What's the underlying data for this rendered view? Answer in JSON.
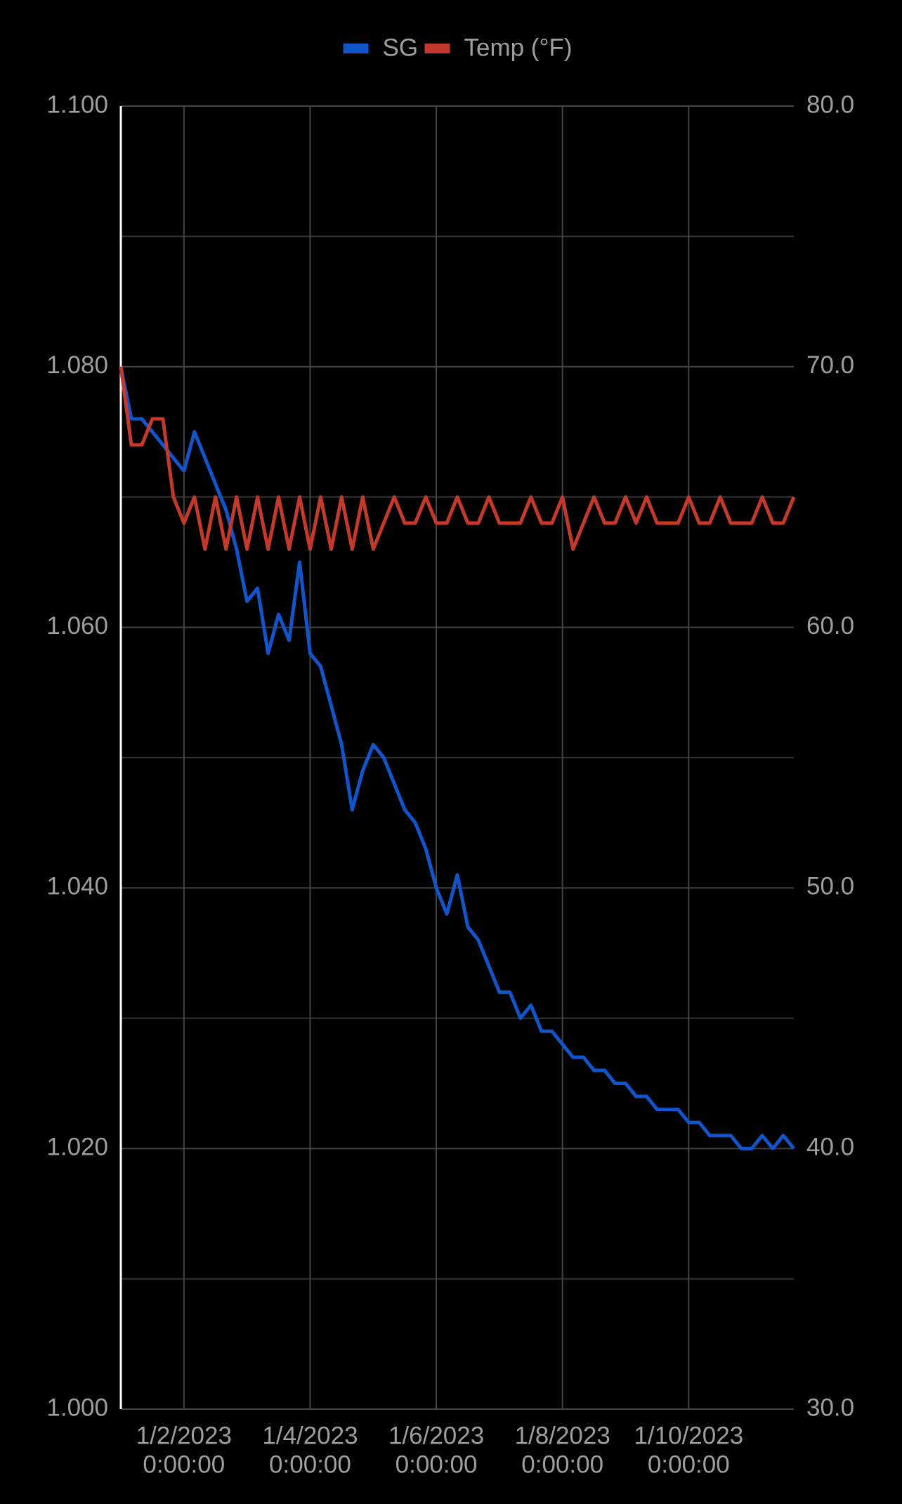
{
  "chart_data": {
    "type": "line",
    "x": [
      "2023-01-01T00:00:00",
      "2023-01-01T04:00:00",
      "2023-01-01T08:00:00",
      "2023-01-01T12:00:00",
      "2023-01-01T16:00:00",
      "2023-01-01T20:00:00",
      "2023-01-02T00:00:00",
      "2023-01-02T04:00:00",
      "2023-01-02T08:00:00",
      "2023-01-02T12:00:00",
      "2023-01-02T16:00:00",
      "2023-01-02T20:00:00",
      "2023-01-03T00:00:00",
      "2023-01-03T04:00:00",
      "2023-01-03T08:00:00",
      "2023-01-03T12:00:00",
      "2023-01-03T16:00:00",
      "2023-01-03T20:00:00",
      "2023-01-04T00:00:00",
      "2023-01-04T04:00:00",
      "2023-01-04T08:00:00",
      "2023-01-04T12:00:00",
      "2023-01-04T16:00:00",
      "2023-01-04T20:00:00",
      "2023-01-05T00:00:00",
      "2023-01-05T04:00:00",
      "2023-01-05T08:00:00",
      "2023-01-05T12:00:00",
      "2023-01-05T16:00:00",
      "2023-01-05T20:00:00",
      "2023-01-06T00:00:00",
      "2023-01-06T04:00:00",
      "2023-01-06T08:00:00",
      "2023-01-06T12:00:00",
      "2023-01-06T16:00:00",
      "2023-01-06T20:00:00",
      "2023-01-07T00:00:00",
      "2023-01-07T04:00:00",
      "2023-01-07T08:00:00",
      "2023-01-07T12:00:00",
      "2023-01-07T16:00:00",
      "2023-01-07T20:00:00",
      "2023-01-08T00:00:00",
      "2023-01-08T04:00:00",
      "2023-01-08T08:00:00",
      "2023-01-08T12:00:00",
      "2023-01-08T16:00:00",
      "2023-01-08T20:00:00",
      "2023-01-09T00:00:00",
      "2023-01-09T04:00:00",
      "2023-01-09T08:00:00",
      "2023-01-09T12:00:00",
      "2023-01-09T16:00:00",
      "2023-01-09T20:00:00",
      "2023-01-10T00:00:00",
      "2023-01-10T04:00:00",
      "2023-01-10T08:00:00",
      "2023-01-10T12:00:00",
      "2023-01-10T16:00:00",
      "2023-01-10T20:00:00",
      "2023-01-11T00:00:00",
      "2023-01-11T04:00:00",
      "2023-01-11T08:00:00",
      "2023-01-11T12:00:00",
      "2023-01-11T16:00:00"
    ],
    "series": [
      {
        "name": "SG",
        "color": "#1155cc",
        "values": [
          1.08,
          1.076,
          1.076,
          1.075,
          1.074,
          1.073,
          1.072,
          1.075,
          1.073,
          1.071,
          1.069,
          1.066,
          1.062,
          1.063,
          1.058,
          1.061,
          1.059,
          1.065,
          1.058,
          1.057,
          1.054,
          1.051,
          1.046,
          1.049,
          1.051,
          1.05,
          1.048,
          1.046,
          1.045,
          1.043,
          1.04,
          1.038,
          1.041,
          1.037,
          1.036,
          1.034,
          1.032,
          1.032,
          1.03,
          1.031,
          1.029,
          1.029,
          1.028,
          1.027,
          1.027,
          1.026,
          1.026,
          1.025,
          1.025,
          1.024,
          1.024,
          1.023,
          1.023,
          1.023,
          1.022,
          1.022,
          1.021,
          1.021,
          1.021,
          1.02,
          1.02,
          1.021,
          1.02,
          1.021,
          1.02
        ]
      },
      {
        "name": "Temp (°F)",
        "color": "#c5392b",
        "axis": "y2",
        "values": [
          70,
          67,
          67,
          68,
          68,
          65,
          64,
          65,
          63,
          65,
          63,
          65,
          63,
          65,
          63,
          65,
          63,
          65,
          63,
          65,
          63,
          65,
          63,
          65,
          63,
          64,
          65,
          64,
          64,
          65,
          64,
          64,
          65,
          64,
          64,
          65,
          64,
          64,
          64,
          65,
          64,
          64,
          65,
          63,
          64,
          65,
          64,
          64,
          65,
          64,
          65,
          64,
          64,
          64,
          65,
          64,
          64,
          65,
          64,
          64,
          64,
          65,
          64,
          64,
          65
        ]
      }
    ],
    "xlim": [
      "2023-01-01T00:00:00",
      "2023-01-11T16:00:00"
    ],
    "xticks": [
      {
        "value": "2023-01-02T00:00:00",
        "label": [
          "1/2/2023",
          "0:00:00"
        ]
      },
      {
        "value": "2023-01-04T00:00:00",
        "label": [
          "1/4/2023",
          "0:00:00"
        ]
      },
      {
        "value": "2023-01-06T00:00:00",
        "label": [
          "1/6/2023",
          "0:00:00"
        ]
      },
      {
        "value": "2023-01-08T00:00:00",
        "label": [
          "1/8/2023",
          "0:00:00"
        ]
      },
      {
        "value": "2023-01-10T00:00:00",
        "label": [
          "1/10/2023",
          "0:00:00"
        ]
      }
    ],
    "ylim": [
      1.0,
      1.1
    ],
    "yticks": [
      {
        "value": 1.0,
        "label": "1.000"
      },
      {
        "value": 1.02,
        "label": "1.020"
      },
      {
        "value": 1.04,
        "label": "1.040"
      },
      {
        "value": 1.06,
        "label": "1.060"
      },
      {
        "value": 1.08,
        "label": "1.080"
      },
      {
        "value": 1.1,
        "label": "1.100"
      }
    ],
    "y_minor_grid": [
      1.01,
      1.03,
      1.05,
      1.07,
      1.09
    ],
    "y2lim": [
      30,
      80
    ],
    "y2ticks": [
      {
        "value": 30,
        "label": "30.0"
      },
      {
        "value": 40,
        "label": "40.0"
      },
      {
        "value": 50,
        "label": "50.0"
      },
      {
        "value": 60,
        "label": "60.0"
      },
      {
        "value": 70,
        "label": "70.0"
      },
      {
        "value": 80,
        "label": "80.0"
      }
    ],
    "grid": true,
    "legend": "top"
  }
}
